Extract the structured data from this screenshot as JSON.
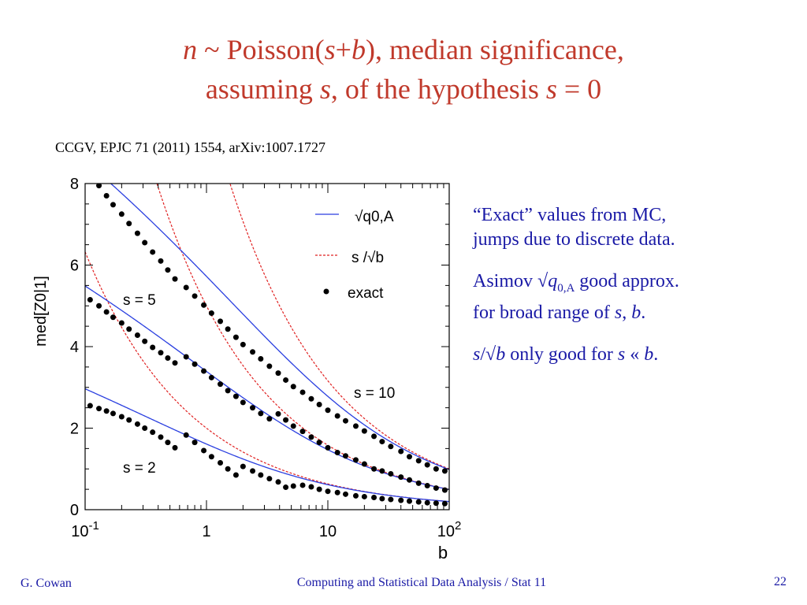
{
  "slide": {
    "title_line1_pre": "n",
    "title_line1_mid": " ~ Poisson(",
    "title_line1_s": "s",
    "title_line1_plus": "+",
    "title_line1_b": "b",
    "title_line1_post": "),  median significance,",
    "title_line2_pre": "assuming ",
    "title_line2_s": "s",
    "title_line2_mid": ", of the hypothesis ",
    "title_line2_s2": "s",
    "title_line2_post": " = 0",
    "citation": "CCGV, EPJC 71 (2011) 1554, arXiv:1007.1727",
    "note1_line1": "“Exact” values from MC,",
    "note1_line2": "jumps due to discrete data.",
    "note2_a": "Asimov √",
    "note2_q": "q",
    "note2_sub": "0,A",
    "note2_b": " good approx.",
    "note2_line2_pre": "for broad range of ",
    "note2_s": "s",
    "note2_comma": ", ",
    "note2_bb": "b",
    "note2_end": ".",
    "note3_s": "s",
    "note3_slash": "/√",
    "note3_b": "b",
    "note3_mid": " only good for ",
    "note3_s2": "s",
    "note3_ll": " « ",
    "note3_b2": "b",
    "note3_end": ".",
    "footer_left": "G. Cowan",
    "footer_center": "Computing and Statistical Data Analysis / Stat 11",
    "footer_right": "22",
    "title_color": "#c0392b",
    "text_color": "#1a1aa6"
  },
  "chart_data": {
    "type": "line",
    "xscale": "log",
    "xlim": [
      0.1,
      100
    ],
    "ylim": [
      0,
      8
    ],
    "xlabel": "b",
    "ylabel": "med[Z0|1]",
    "x_ticks": [
      "10-1",
      "1",
      "10",
      "102"
    ],
    "y_ticks": [
      "0",
      "2",
      "4",
      "6",
      "8"
    ],
    "legend": {
      "position": "top-right",
      "asimov_label": "√q0,A",
      "sqrtb_label": "s /√b",
      "exact_label": "exact"
    },
    "annotations": [
      "s = 5",
      "s = 10",
      "s = 2"
    ],
    "s_values": [
      2,
      5,
      10
    ],
    "colors": {
      "asimov": "#2a3fe0",
      "sqrtb": "#e02020",
      "exact": "#000000"
    },
    "exact_points": {
      "s2": [
        [
          0.11,
          2.55
        ],
        [
          0.13,
          2.48
        ],
        [
          0.15,
          2.42
        ],
        [
          0.17,
          2.36
        ],
        [
          0.2,
          2.28
        ],
        [
          0.23,
          2.2
        ],
        [
          0.27,
          2.1
        ],
        [
          0.31,
          2.0
        ],
        [
          0.36,
          1.9
        ],
        [
          0.42,
          1.78
        ],
        [
          0.48,
          1.65
        ],
        [
          0.55,
          1.52
        ],
        [
          0.68,
          1.83
        ],
        [
          0.8,
          1.65
        ],
        [
          0.95,
          1.45
        ],
        [
          1.1,
          1.3
        ],
        [
          1.3,
          1.15
        ],
        [
          1.5,
          1.0
        ],
        [
          1.75,
          0.85
        ],
        [
          2.0,
          1.06
        ],
        [
          2.4,
          0.95
        ],
        [
          2.8,
          0.85
        ],
        [
          3.3,
          0.76
        ],
        [
          3.9,
          0.68
        ],
        [
          4.5,
          0.55
        ],
        [
          5.2,
          0.58
        ],
        [
          6.2,
          0.6
        ],
        [
          7.3,
          0.56
        ],
        [
          8.5,
          0.5
        ],
        [
          10,
          0.45
        ],
        [
          12,
          0.42
        ],
        [
          14,
          0.38
        ],
        [
          17,
          0.34
        ],
        [
          20,
          0.32
        ],
        [
          24,
          0.3
        ],
        [
          28,
          0.27
        ],
        [
          33,
          0.25
        ],
        [
          40,
          0.23
        ],
        [
          47,
          0.21
        ],
        [
          56,
          0.19
        ],
        [
          66,
          0.17
        ],
        [
          78,
          0.16
        ],
        [
          92,
          0.15
        ]
      ],
      "s5": [
        [
          0.11,
          5.15
        ],
        [
          0.13,
          5.0
        ],
        [
          0.15,
          4.85
        ],
        [
          0.17,
          4.72
        ],
        [
          0.2,
          4.58
        ],
        [
          0.23,
          4.43
        ],
        [
          0.27,
          4.28
        ],
        [
          0.31,
          4.13
        ],
        [
          0.36,
          3.98
        ],
        [
          0.42,
          3.85
        ],
        [
          0.48,
          3.72
        ],
        [
          0.55,
          3.6
        ],
        [
          0.68,
          3.75
        ],
        [
          0.8,
          3.57
        ],
        [
          0.95,
          3.4
        ],
        [
          1.1,
          3.24
        ],
        [
          1.3,
          3.08
        ],
        [
          1.5,
          2.92
        ],
        [
          1.75,
          2.78
        ],
        [
          2.0,
          2.63
        ],
        [
          2.4,
          2.5
        ],
        [
          2.8,
          2.36
        ],
        [
          3.3,
          2.23
        ],
        [
          3.9,
          2.35
        ],
        [
          4.5,
          2.2
        ],
        [
          5.2,
          2.05
        ],
        [
          6.2,
          1.92
        ],
        [
          7.3,
          1.78
        ],
        [
          8.5,
          1.65
        ],
        [
          10,
          1.52
        ],
        [
          12,
          1.4
        ],
        [
          14,
          1.32
        ],
        [
          17,
          1.22
        ],
        [
          20,
          1.12
        ],
        [
          24,
          1.0
        ],
        [
          28,
          0.95
        ],
        [
          33,
          0.88
        ],
        [
          40,
          0.8
        ],
        [
          47,
          0.73
        ],
        [
          56,
          0.65
        ],
        [
          66,
          0.59
        ],
        [
          78,
          0.53
        ],
        [
          92,
          0.48
        ]
      ],
      "s10": [
        [
          0.13,
          7.95
        ],
        [
          0.15,
          7.7
        ],
        [
          0.17,
          7.48
        ],
        [
          0.2,
          7.25
        ],
        [
          0.23,
          7.02
        ],
        [
          0.27,
          6.78
        ],
        [
          0.31,
          6.55
        ],
        [
          0.36,
          6.32
        ],
        [
          0.42,
          6.1
        ],
        [
          0.48,
          5.88
        ],
        [
          0.55,
          5.66
        ],
        [
          0.68,
          5.45
        ],
        [
          0.8,
          5.24
        ],
        [
          0.95,
          5.02
        ],
        [
          1.1,
          4.82
        ],
        [
          1.3,
          4.62
        ],
        [
          1.5,
          4.43
        ],
        [
          1.75,
          4.23
        ],
        [
          2.0,
          4.05
        ],
        [
          2.4,
          3.87
        ],
        [
          2.8,
          3.7
        ],
        [
          3.3,
          3.52
        ],
        [
          3.9,
          3.35
        ],
        [
          4.5,
          3.18
        ],
        [
          5.2,
          3.02
        ],
        [
          6.2,
          2.88
        ],
        [
          7.3,
          2.72
        ],
        [
          8.5,
          2.58
        ],
        [
          10,
          2.44
        ],
        [
          12,
          2.3
        ],
        [
          14,
          2.18
        ],
        [
          17,
          2.05
        ],
        [
          20,
          1.93
        ],
        [
          24,
          1.8
        ],
        [
          28,
          1.67
        ],
        [
          33,
          1.55
        ],
        [
          40,
          1.43
        ],
        [
          47,
          1.3
        ],
        [
          56,
          1.2
        ],
        [
          66,
          1.1
        ],
        [
          78,
          1.0
        ],
        [
          92,
          0.95
        ]
      ]
    }
  }
}
